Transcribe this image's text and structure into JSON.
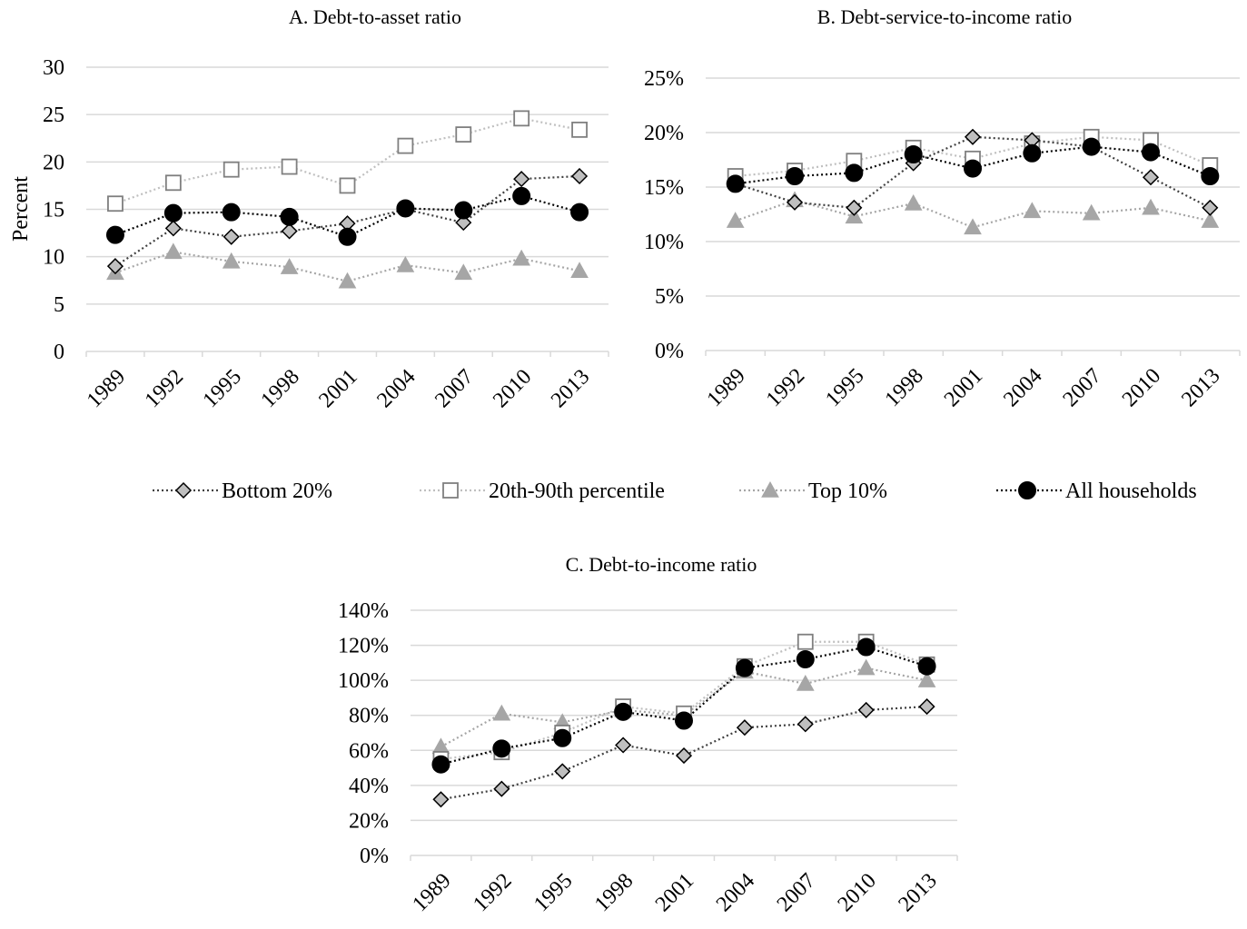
{
  "legend": {
    "bottom": "Bottom 20%",
    "mid": "20th-90th percentile",
    "top": "Top 10%",
    "all": "All households"
  },
  "series_styles": {
    "bottom": {
      "marker": "diamond",
      "fill": "#bfbfbf",
      "stroke": "#000000",
      "line": "#404040"
    },
    "mid": {
      "marker": "square",
      "fill": "#ffffff",
      "stroke": "#7f7f7f",
      "line": "#bfbfbf"
    },
    "top": {
      "marker": "triangle",
      "fill": "#a6a6a6",
      "stroke": "#a6a6a6",
      "line": "#a6a6a6"
    },
    "all": {
      "marker": "circle",
      "fill": "#000000",
      "stroke": "#000000",
      "line": "#000000"
    }
  },
  "chart_data": [
    {
      "type": "line",
      "title": "A. Debt-to-asset ratio",
      "ylabel": "Percent",
      "xlabel": "",
      "categories": [
        "1989",
        "1992",
        "1995",
        "1998",
        "2001",
        "2004",
        "2007",
        "2010",
        "2013"
      ],
      "ylim": [
        0,
        30
      ],
      "yticks": [
        0,
        5,
        10,
        15,
        20,
        25,
        30
      ],
      "ytick_labels": [
        "0",
        "5",
        "10",
        "15",
        "20",
        "25",
        "30"
      ],
      "grid": true,
      "series": [
        {
          "key": "bottom",
          "name": "Bottom 20%",
          "values": [
            9.0,
            13.0,
            12.1,
            12.7,
            13.5,
            15.0,
            13.6,
            18.2,
            18.5
          ]
        },
        {
          "key": "mid",
          "name": "20th-90th percentile",
          "values": [
            15.6,
            17.8,
            19.2,
            19.5,
            17.5,
            21.7,
            22.9,
            24.6,
            23.4
          ]
        },
        {
          "key": "top",
          "name": "Top 10%",
          "values": [
            8.3,
            10.5,
            9.5,
            8.9,
            7.4,
            9.1,
            8.3,
            9.8,
            8.5
          ]
        },
        {
          "key": "all",
          "name": "All households",
          "values": [
            12.3,
            14.6,
            14.7,
            14.2,
            12.1,
            15.1,
            14.9,
            16.4,
            14.7
          ]
        }
      ]
    },
    {
      "type": "line",
      "title": "B. Debt-service-to-income ratio",
      "ylabel": "",
      "xlabel": "",
      "categories": [
        "1989",
        "1992",
        "1995",
        "1998",
        "2001",
        "2004",
        "2007",
        "2010",
        "2013"
      ],
      "ylim": [
        0,
        25
      ],
      "yticks": [
        0,
        5,
        10,
        15,
        20,
        25
      ],
      "ytick_labels": [
        "0%",
        "5%",
        "10%",
        "15%",
        "20%",
        "25%"
      ],
      "grid": true,
      "series": [
        {
          "key": "bottom",
          "name": "Bottom 20%",
          "values": [
            15.3,
            13.6,
            13.1,
            17.2,
            19.6,
            19.3,
            18.7,
            15.9,
            13.1
          ]
        },
        {
          "key": "mid",
          "name": "20th-90th percentile",
          "values": [
            16.0,
            16.5,
            17.4,
            18.6,
            17.6,
            19.0,
            19.6,
            19.3,
            17.0
          ]
        },
        {
          "key": "top",
          "name": "Top 10%",
          "values": [
            11.9,
            13.8,
            12.3,
            13.5,
            11.3,
            12.8,
            12.6,
            13.1,
            11.9
          ]
        },
        {
          "key": "all",
          "name": "All households",
          "values": [
            15.3,
            16.0,
            16.3,
            18.0,
            16.7,
            18.1,
            18.7,
            18.2,
            16.0
          ]
        }
      ]
    },
    {
      "type": "line",
      "title": "C. Debt-to-income ratio",
      "ylabel": "",
      "xlabel": "",
      "categories": [
        "1989",
        "1992",
        "1995",
        "1998",
        "2001",
        "2004",
        "2007",
        "2010",
        "2013"
      ],
      "ylim": [
        0,
        140
      ],
      "yticks": [
        0,
        20,
        40,
        60,
        80,
        100,
        120,
        140
      ],
      "ytick_labels": [
        "0%",
        "20%",
        "40%",
        "60%",
        "80%",
        "100%",
        "120%",
        "140%"
      ],
      "grid": true,
      "series": [
        {
          "key": "bottom",
          "name": "Bottom 20%",
          "values": [
            32,
            38,
            48,
            63,
            57,
            73,
            75,
            83,
            85
          ]
        },
        {
          "key": "mid",
          "name": "20th-90th percentile",
          "values": [
            55,
            59,
            70,
            85,
            81,
            108,
            122,
            122,
            109
          ]
        },
        {
          "key": "top",
          "name": "Top 10%",
          "values": [
            62,
            81,
            76,
            83,
            80,
            105,
            98,
            107,
            100
          ]
        },
        {
          "key": "all",
          "name": "All households",
          "values": [
            52,
            61,
            67,
            82,
            77,
            107,
            112,
            119,
            108
          ]
        }
      ]
    }
  ]
}
